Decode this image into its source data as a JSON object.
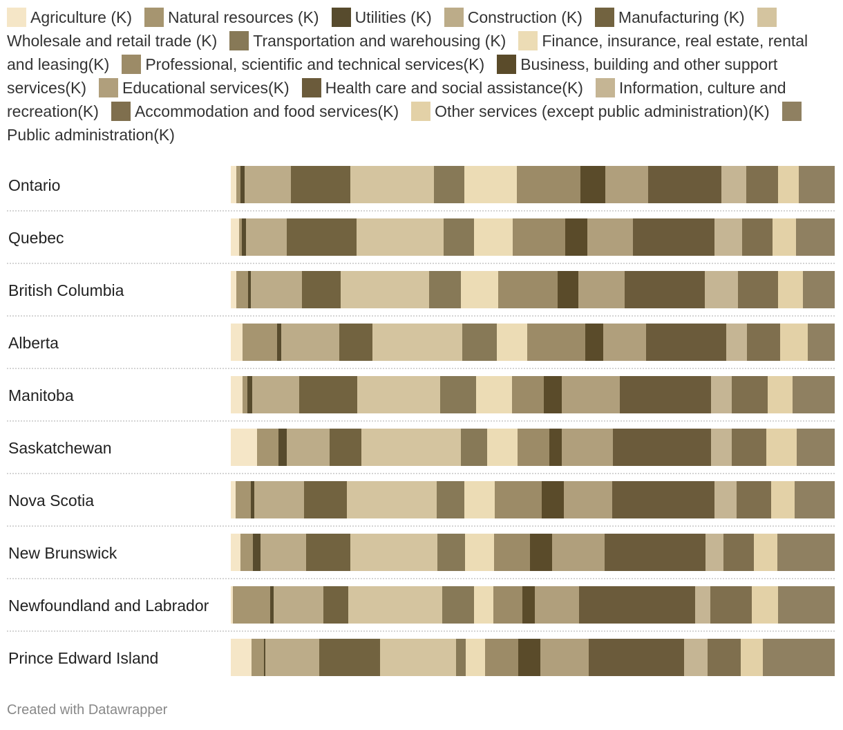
{
  "chart_data": {
    "type": "bar",
    "orientation": "horizontal",
    "stacked": "100-percent",
    "title": "",
    "xlabel": "",
    "ylabel": "",
    "legend_placement": "top",
    "grid": false,
    "categories": [
      "Ontario",
      "Quebec",
      "British Columbia",
      "Alberta",
      "Manitoba",
      "Saskatchewan",
      "Nova Scotia",
      "New Brunswick",
      "Newfoundland and Labrador",
      "Prince Edward Island"
    ],
    "series": [
      {
        "name": "Agriculture (K)",
        "color": "#f5e6c7",
        "values": [
          0.9,
          1.4,
          0.9,
          1.9,
          2.0,
          4.4,
          0.8,
          1.6,
          0.4,
          3.4
        ]
      },
      {
        "name": "Natural resources (K)",
        "color": "#a69570",
        "values": [
          0.7,
          0.5,
          1.9,
          5.7,
          0.8,
          3.6,
          2.5,
          2.1,
          6.2,
          2.1
        ]
      },
      {
        "name": "Utilities (K)",
        "color": "#574b2d",
        "values": [
          0.7,
          0.7,
          0.4,
          0.7,
          0.8,
          1.4,
          0.6,
          1.3,
          0.6,
          0.2
        ]
      },
      {
        "name": "Construction (K)",
        "color": "#bcac89",
        "values": [
          7.7,
          6.8,
          8.5,
          9.6,
          7.8,
          7.1,
          8.2,
          7.6,
          8.2,
          8.9
        ]
      },
      {
        "name": "Manufacturing (K)",
        "color": "#726340",
        "values": [
          9.8,
          11.5,
          6.4,
          5.5,
          9.6,
          5.3,
          7.1,
          7.3,
          4.1,
          10.1
        ]
      },
      {
        "name": "Wholesale and retail trade (K)",
        "color": "#d4c49f",
        "values": [
          13.9,
          14.4,
          14.6,
          14.9,
          13.7,
          16.5,
          14.9,
          14.4,
          15.6,
          12.6
        ]
      },
      {
        "name": "Transportation and warehousing (K)",
        "color": "#877957",
        "values": [
          5.0,
          5.0,
          5.3,
          5.7,
          6.0,
          4.3,
          4.6,
          4.6,
          5.3,
          1.6
        ]
      },
      {
        "name": "Finance, insurance, real estate, rental and leasing(K)",
        "color": "#ecdcb5",
        "values": [
          8.7,
          6.4,
          6.2,
          5.0,
          5.9,
          5.0,
          5.0,
          4.8,
          3.2,
          3.2
        ]
      },
      {
        "name": "Professional, scientific and technical services(K)",
        "color": "#9c8b67",
        "values": [
          10.5,
          8.7,
          9.8,
          9.6,
          5.3,
          5.3,
          7.8,
          6.0,
          4.8,
          5.5
        ]
      },
      {
        "name": "Business, building and other support services(K)",
        "color": "#5a4b2a",
        "values": [
          4.1,
          3.7,
          3.4,
          3.0,
          3.0,
          2.1,
          3.7,
          3.7,
          2.1,
          3.7
        ]
      },
      {
        "name": "Educational services(K)",
        "color": "#b09f7c",
        "values": [
          7.1,
          7.6,
          7.6,
          7.1,
          9.6,
          8.5,
          8.0,
          8.7,
          7.3,
          8.0
        ]
      },
      {
        "name": "Health care and social assistance(K)",
        "color": "#6b5b3b",
        "values": [
          12.1,
          13.5,
          13.3,
          13.3,
          15.1,
          16.2,
          16.9,
          16.7,
          19.2,
          15.8
        ]
      },
      {
        "name": "Information, culture and recreation(K)",
        "color": "#c5b594",
        "values": [
          4.1,
          4.6,
          5.5,
          3.4,
          3.4,
          3.4,
          3.7,
          3.0,
          2.5,
          3.9
        ]
      },
      {
        "name": "Accommodation and food services(K)",
        "color": "#7f6f4e",
        "values": [
          5.3,
          5.0,
          6.6,
          5.5,
          5.9,
          5.7,
          5.7,
          5.0,
          6.9,
          5.5
        ]
      },
      {
        "name": "Other services (except public administration)(K)",
        "color": "#e3d1a7",
        "values": [
          3.4,
          3.9,
          4.1,
          4.6,
          4.1,
          5.0,
          3.9,
          3.9,
          4.3,
          3.7
        ]
      },
      {
        "name": "Public administration(K)",
        "color": "#8f8061",
        "values": [
          6.0,
          6.2,
          5.3,
          4.6,
          6.9,
          6.2,
          6.6,
          9.4,
          9.2,
          12.1
        ]
      }
    ]
  },
  "footer": {
    "credit": "Created with Datawrapper"
  }
}
